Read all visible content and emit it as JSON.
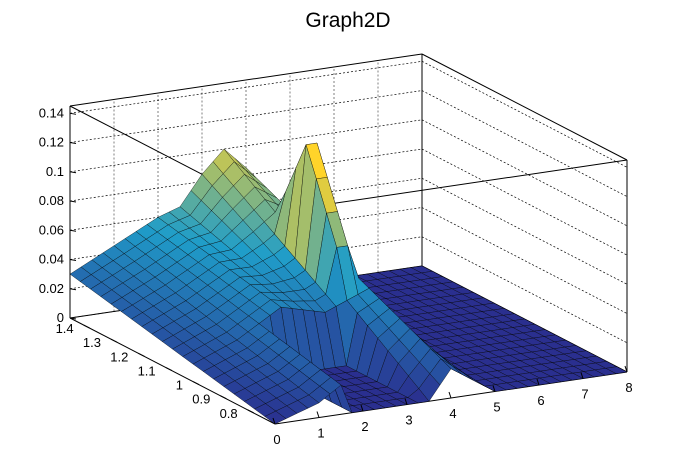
{
  "chart_data": {
    "type": "surface",
    "title": "Graph2D",
    "xlabel": "",
    "ylabel": "",
    "zlabel": "",
    "xlim": [
      0,
      8
    ],
    "ylim": [
      0.7,
      1.45
    ],
    "zlim": [
      0,
      0.145
    ],
    "x_ticks": [
      "0",
      "1",
      "2",
      "3",
      "4",
      "5",
      "6",
      "7",
      "8"
    ],
    "y_ticks": [
      "0.8",
      "0.9",
      "1",
      "1.1",
      "1.2",
      "1.3",
      "1.4"
    ],
    "z_ticks": [
      "0",
      "0.02",
      "0.04",
      "0.06",
      "0.08",
      "0.1",
      "0.12",
      "0.14"
    ],
    "grid": true,
    "colormap": "viridis-like (dark blue to yellow)",
    "surface_profile": {
      "description_x_slices": [
        0,
        1,
        2,
        2.5,
        3,
        3.5,
        4,
        5,
        6,
        7,
        8
      ],
      "z_along_x_at_y_high": [
        0.03,
        0.045,
        0.06,
        0.065,
        0.085,
        0.1,
        0.085,
        0,
        0,
        0,
        0
      ],
      "z_along_x_at_y_low": [
        0.0,
        0.01,
        0.03,
        0.02,
        0.0,
        0.0,
        0.02,
        0,
        0,
        0,
        0
      ],
      "peak_z": 0.132
    }
  },
  "colors": {
    "low": "#2a2f8f",
    "mid": "#1f9dc9",
    "high": "#ffd42a"
  }
}
